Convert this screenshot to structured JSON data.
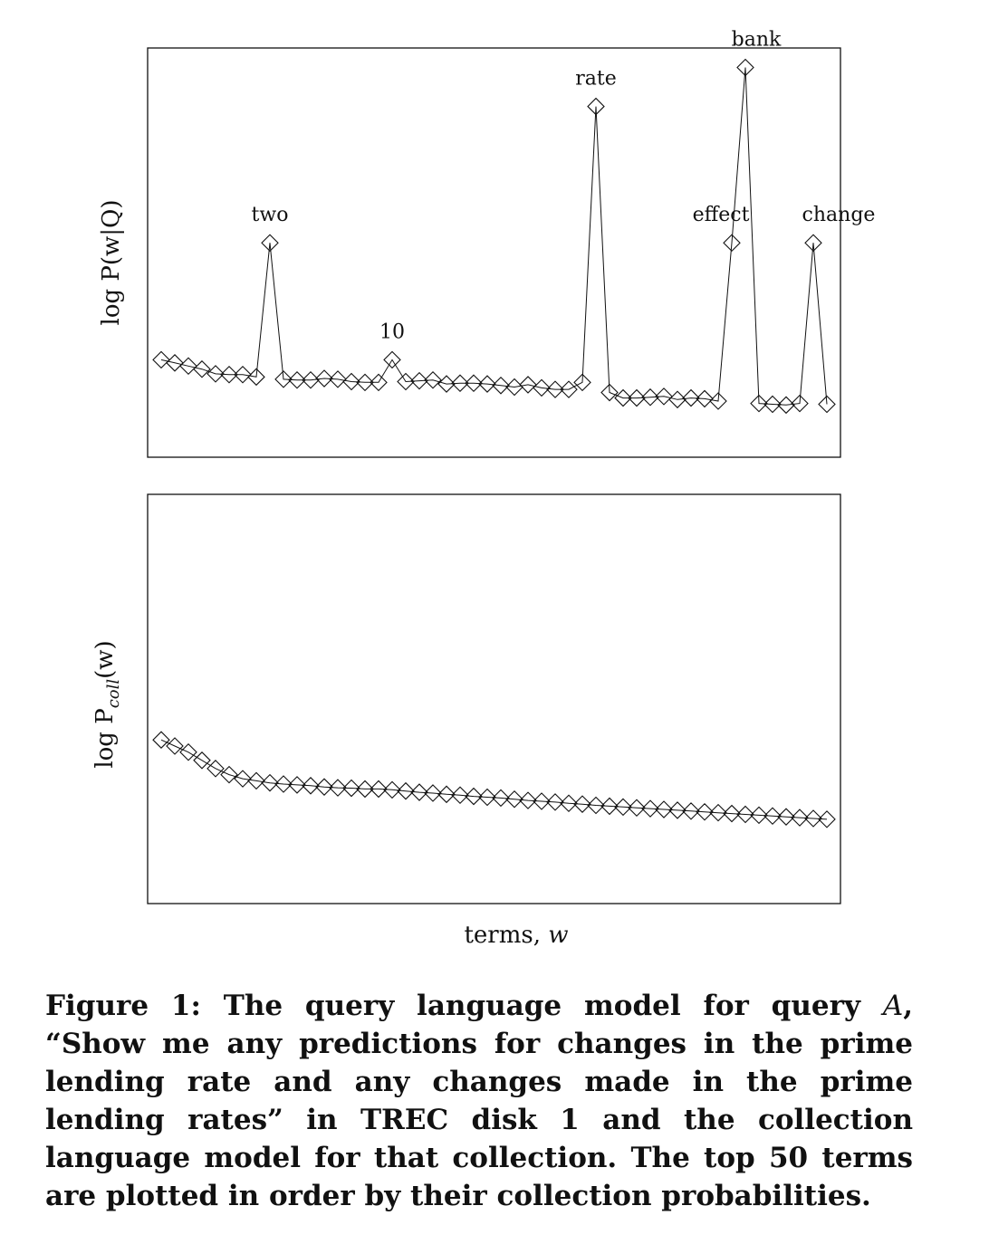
{
  "chart_data": [
    {
      "type": "line",
      "marker": "diamond",
      "ylabel": "log P(w|Q)",
      "xlabel": "",
      "x": [
        1,
        2,
        3,
        4,
        5,
        6,
        7,
        8,
        9,
        10,
        11,
        12,
        13,
        14,
        15,
        16,
        17,
        18,
        19,
        20,
        21,
        22,
        23,
        24,
        25,
        26,
        27,
        28,
        29,
        30,
        31,
        32,
        33,
        34,
        35,
        36,
        37,
        38,
        39,
        40,
        41,
        42,
        43,
        44,
        45,
        46,
        47,
        48,
        49,
        50
      ],
      "values": [
        -9.0,
        -9.08,
        -9.16,
        -9.24,
        -9.36,
        -9.38,
        -9.38,
        -9.44,
        -6.0,
        -9.5,
        -9.52,
        -9.52,
        -9.48,
        -9.5,
        -9.56,
        -9.58,
        -9.58,
        -9.0,
        -9.56,
        -9.54,
        -9.52,
        -9.62,
        -9.6,
        -9.6,
        -9.62,
        -9.66,
        -9.7,
        -9.64,
        -9.72,
        -9.76,
        -9.76,
        -9.58,
        -2.5,
        -9.84,
        -9.98,
        -9.98,
        -9.96,
        -9.94,
        -10.02,
        -9.98,
        -10.0,
        -10.06,
        -6.0,
        -1.5,
        -10.12,
        -10.14,
        -10.16,
        -10.12,
        -6.0,
        -10.14
      ],
      "annotations": [
        {
          "index": 8,
          "text": "two"
        },
        {
          "index": 17,
          "text": "10"
        },
        {
          "index": 32,
          "text": "rate"
        },
        {
          "index": 42,
          "text": "effect"
        },
        {
          "index": 43,
          "text": "bank"
        },
        {
          "index": 48,
          "text": "change"
        }
      ],
      "ylim": [
        -11.5,
        -1.0
      ],
      "grid": false
    },
    {
      "type": "line",
      "marker": "diamond",
      "ylabel": "log P_coll(w)",
      "ylabel_main": "log P",
      "ylabel_sub": "coll",
      "ylabel_arg": "(w)",
      "xlabel": "terms, w",
      "xlabel_text": "terms, ",
      "xlabel_var": "w",
      "x": [
        1,
        2,
        3,
        4,
        5,
        6,
        7,
        8,
        9,
        10,
        11,
        12,
        13,
        14,
        15,
        16,
        17,
        18,
        19,
        20,
        21,
        22,
        23,
        24,
        25,
        26,
        27,
        28,
        29,
        30,
        31,
        32,
        33,
        34,
        35,
        36,
        37,
        38,
        39,
        40,
        41,
        42,
        43,
        44,
        45,
        46,
        47,
        48,
        49,
        50
      ],
      "values": [
        -5.0,
        -5.15,
        -5.3,
        -5.5,
        -5.7,
        -5.85,
        -5.95,
        -6.0,
        -6.05,
        -6.08,
        -6.1,
        -6.12,
        -6.15,
        -6.17,
        -6.18,
        -6.2,
        -6.2,
        -6.22,
        -6.25,
        -6.28,
        -6.3,
        -6.33,
        -6.35,
        -6.38,
        -6.4,
        -6.42,
        -6.45,
        -6.48,
        -6.5,
        -6.52,
        -6.55,
        -6.57,
        -6.6,
        -6.62,
        -6.64,
        -6.66,
        -6.68,
        -6.7,
        -6.72,
        -6.74,
        -6.76,
        -6.78,
        -6.8,
        -6.82,
        -6.84,
        -6.86,
        -6.88,
        -6.9,
        -6.92,
        -6.94
      ],
      "ylim": [
        -9.0,
        1.0
      ],
      "grid": false
    }
  ],
  "caption": {
    "prefix": "Figure 1:  The query language model for query ",
    "query_var": "A",
    "text": ", “Show me any predictions for changes in the prime lending rate and any changes made in the prime lending rates” in TREC disk 1 and the collection language model for that collection.  The top 50 terms are plotted in order by their collection probabilities."
  }
}
